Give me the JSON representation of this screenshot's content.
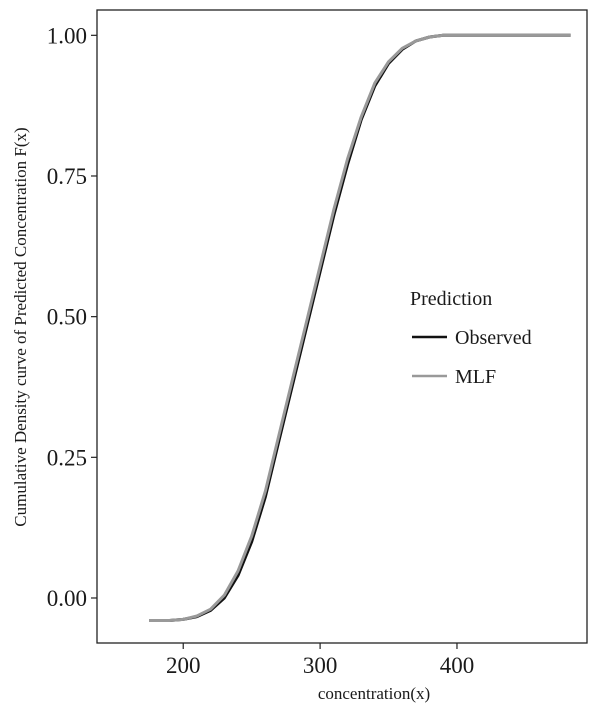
{
  "chart_data": {
    "type": "line",
    "xlabel": "concentration(x)",
    "ylabel": "Cumulative Density curve of Predicted Concentration F(x)",
    "xlim": [
      137,
      495
    ],
    "ylim": [
      -0.08,
      1.045
    ],
    "x_ticks": [
      200,
      300,
      400
    ],
    "y_ticks": [
      0.0,
      0.25,
      0.5,
      0.75,
      1.0
    ],
    "x_tick_labels": [
      "200",
      "300",
      "400"
    ],
    "y_tick_labels": [
      "0.00",
      "0.25",
      "0.50",
      "0.75",
      "1.00"
    ],
    "grid": false,
    "legend": {
      "title": "Prediction",
      "placement": "right"
    },
    "series": [
      {
        "name": "Observed",
        "color": "#111111",
        "x": [
          175,
          190,
          200,
          210,
          220,
          230,
          240,
          250,
          260,
          270,
          280,
          290,
          300,
          310,
          320,
          330,
          340,
          350,
          360,
          370,
          380,
          390,
          400,
          420,
          440,
          460,
          483
        ],
        "y": [
          -0.04,
          -0.04,
          -0.038,
          -0.033,
          -0.022,
          0.0,
          0.04,
          0.1,
          0.18,
          0.28,
          0.38,
          0.48,
          0.58,
          0.68,
          0.77,
          0.85,
          0.91,
          0.95,
          0.975,
          0.99,
          0.997,
          1.0,
          1.0,
          1.0,
          1.0,
          1.0,
          1.0
        ]
      },
      {
        "name": "MLF",
        "color": "#999999",
        "x": [
          175,
          190,
          200,
          210,
          220,
          230,
          240,
          250,
          260,
          270,
          280,
          290,
          300,
          310,
          320,
          330,
          340,
          350,
          360,
          370,
          380,
          390,
          400,
          420,
          440,
          460,
          483
        ],
        "y": [
          -0.04,
          -0.04,
          -0.038,
          -0.032,
          -0.02,
          0.005,
          0.048,
          0.11,
          0.19,
          0.29,
          0.39,
          0.49,
          0.59,
          0.69,
          0.78,
          0.855,
          0.915,
          0.953,
          0.977,
          0.99,
          0.997,
          1.0,
          1.0,
          1.0,
          1.0,
          1.0,
          1.0
        ]
      }
    ]
  }
}
